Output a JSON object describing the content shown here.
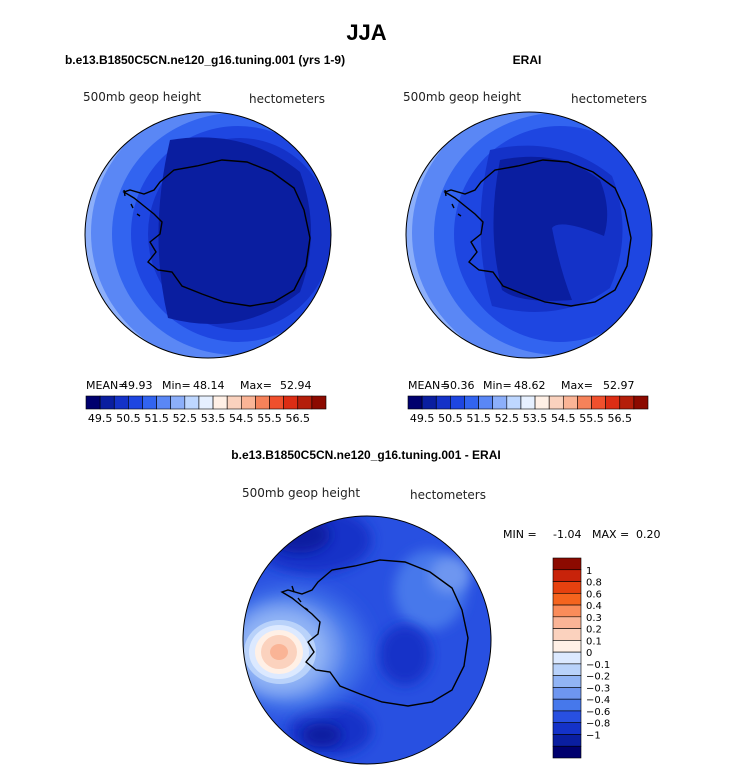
{
  "chart_data": [
    {
      "type": "heatmap",
      "title": "JJA",
      "subtitle": "b.e13.B1850C5CN.ne120_g16.tuning.001 (yrs 1-9)",
      "variable_label": "500mb geop height",
      "units_label": "hectometers",
      "stats": {
        "mean_label": "MEAN=",
        "mean": "49.93",
        "min_label": "Min=",
        "min": "48.14",
        "max_label": "Max=",
        "max": "52.94"
      },
      "colorbar_ticks": [
        "49.5",
        "50.5",
        "51.5",
        "52.5",
        "53.5",
        "54.5",
        "55.5",
        "56.5"
      ],
      "colorbar_colors": [
        "#00006e",
        "#0a1ea0",
        "#1432c8",
        "#1e46e1",
        "#3264f0",
        "#5a87f5",
        "#8caffa",
        "#bed7ff",
        "#e6f0ff",
        "#fff0e6",
        "#fad2be",
        "#fab496",
        "#f5825a",
        "#f0502d",
        "#dc2d14",
        "#b41e0a",
        "#8c0a00"
      ]
    },
    {
      "type": "heatmap",
      "title": "JJA",
      "subtitle": "ERAI",
      "variable_label": "500mb geop height",
      "units_label": "hectometers",
      "stats": {
        "mean_label": "MEAN=",
        "mean": "50.36",
        "min_label": "Min=",
        "min": "48.62",
        "max_label": "Max=",
        "max": "52.97"
      },
      "colorbar_ticks": [
        "49.5",
        "50.5",
        "51.5",
        "52.5",
        "53.5",
        "54.5",
        "55.5",
        "56.5"
      ],
      "colorbar_colors": [
        "#00006e",
        "#0a1ea0",
        "#1432c8",
        "#1e46e1",
        "#3264f0",
        "#5a87f5",
        "#8caffa",
        "#bed7ff",
        "#e6f0ff",
        "#fff0e6",
        "#fad2be",
        "#fab496",
        "#f5825a",
        "#f0502d",
        "#dc2d14",
        "#b41e0a",
        "#8c0a00"
      ]
    },
    {
      "type": "heatmap",
      "title": "JJA",
      "subtitle": "b.e13.B1850C5CN.ne120_g16.tuning.001 - ERAI",
      "variable_label": "500mb geop height",
      "units_label": "hectometers",
      "stats": {
        "min_label": "MIN =",
        "min": "-1.04",
        "max_label": "MAX =",
        "max": "0.20"
      },
      "colorbar_ticks": [
        "1",
        "0.8",
        "0.6",
        "0.4",
        "0.3",
        "0.2",
        "0.1",
        "0",
        "−0.1",
        "−0.2",
        "−0.3",
        "−0.4",
        "−0.6",
        "−0.8",
        "−1"
      ],
      "colorbar_colors": [
        "#8c0a00",
        "#c8230a",
        "#e6410f",
        "#f5641e",
        "#fa8c5a",
        "#fab496",
        "#fbd2be",
        "#fff0e6",
        "#dce9ff",
        "#b9d2fa",
        "#91b4f5",
        "#6e96f0",
        "#4678eb",
        "#2850e1",
        "#1432c8",
        "#0a1ea0",
        "#00006e"
      ]
    }
  ]
}
